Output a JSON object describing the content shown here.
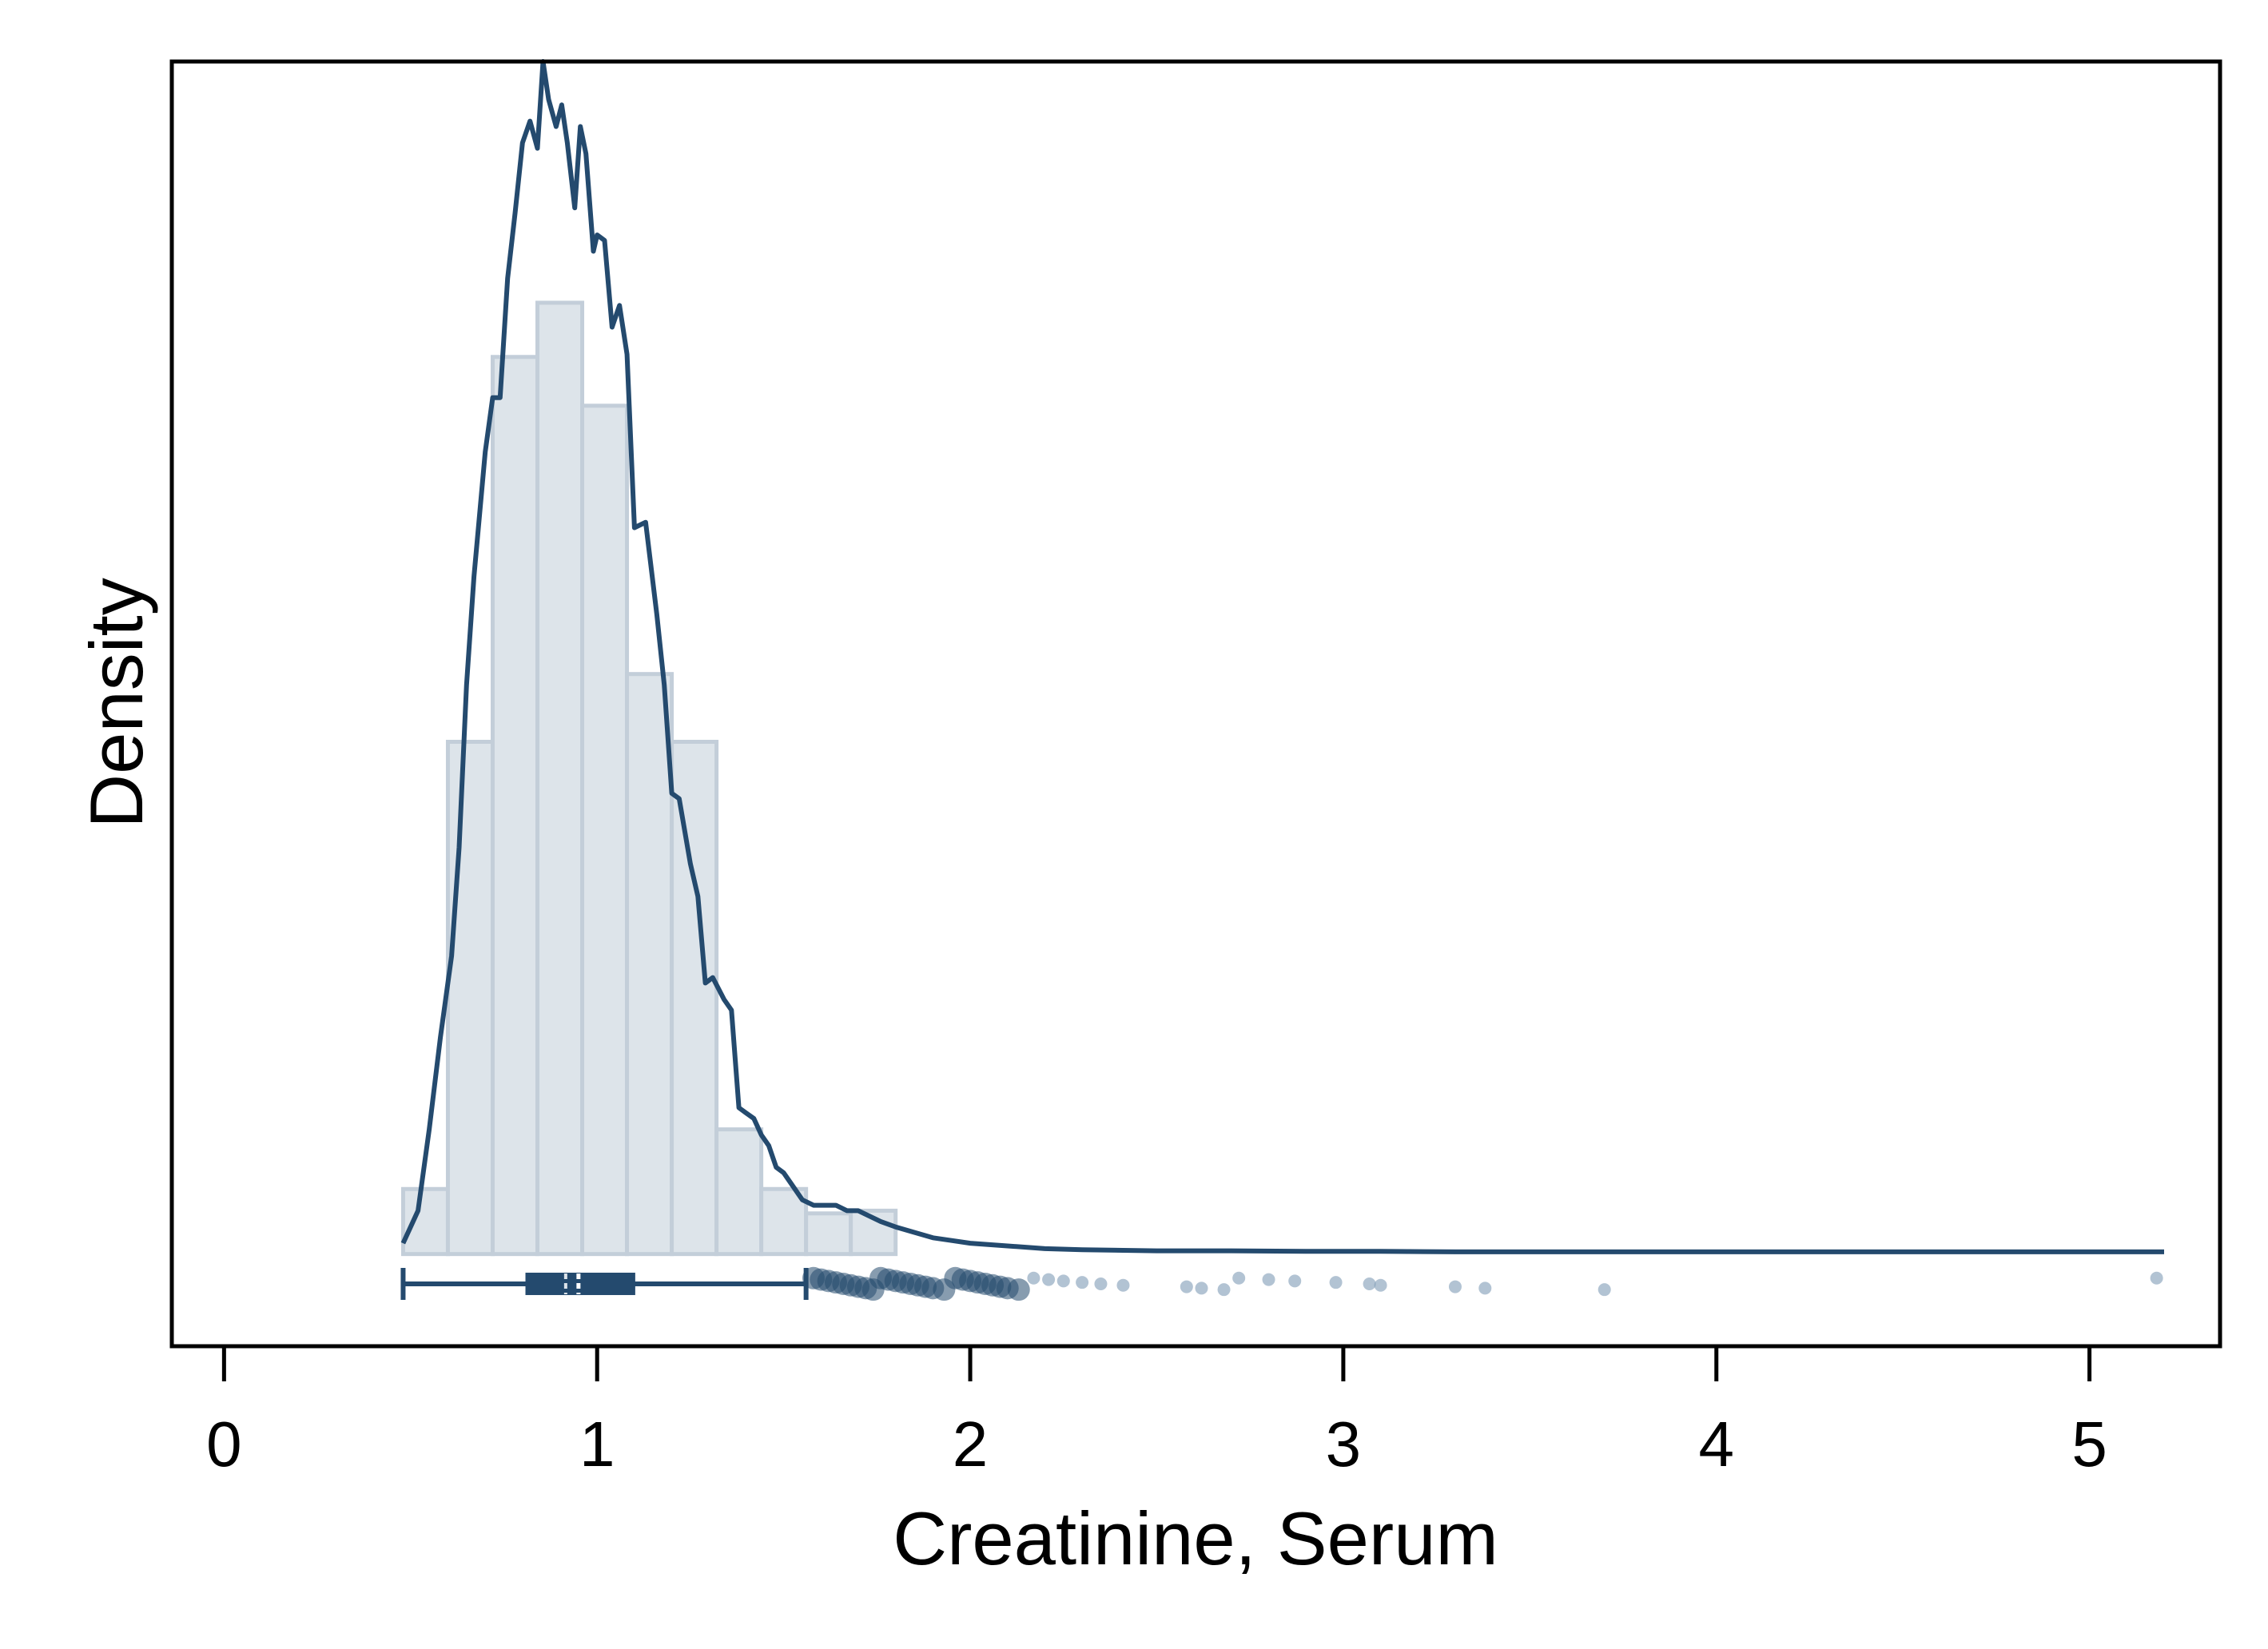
{
  "chart_data": {
    "type": "histogram",
    "xlabel": "Creatinine, Serum",
    "ylabel": "Density",
    "xlim": [
      -0.14,
      5.35
    ],
    "x_ticks": [
      0,
      1,
      2,
      3,
      4,
      5
    ],
    "y_ticks": [],
    "ylim": [
      -0.17,
      2.2
    ],
    "grid": false,
    "legend": "none",
    "colors": {
      "bar_fill": "#dde4ea",
      "bar_stroke": "#c3ced9",
      "line": "#244a6e",
      "outlier": "#7f9bb6"
    },
    "histogram": {
      "bin_width": 0.12,
      "bins": [
        {
          "x0": 0.48,
          "x1": 0.6,
          "density": 0.12
        },
        {
          "x0": 0.6,
          "x1": 0.72,
          "density": 0.945
        },
        {
          "x0": 0.72,
          "x1": 0.84,
          "density": 1.655
        },
        {
          "x0": 0.84,
          "x1": 0.96,
          "density": 1.755
        },
        {
          "x0": 0.96,
          "x1": 1.08,
          "density": 1.565
        },
        {
          "x0": 1.08,
          "x1": 1.2,
          "density": 1.07
        },
        {
          "x0": 1.2,
          "x1": 1.32,
          "density": 0.945
        },
        {
          "x0": 1.32,
          "x1": 1.44,
          "density": 0.23
        },
        {
          "x0": 1.44,
          "x1": 1.56,
          "density": 0.12
        },
        {
          "x0": 1.56,
          "x1": 1.68,
          "density": 0.075
        },
        {
          "x0": 1.68,
          "x1": 1.8,
          "density": 0.08
        }
      ]
    },
    "density_curve": {
      "x": [
        0.48,
        0.52,
        0.55,
        0.58,
        0.61,
        0.63,
        0.65,
        0.67,
        0.7,
        0.72,
        0.74,
        0.76,
        0.78,
        0.8,
        0.82,
        0.84,
        0.855,
        0.87,
        0.89,
        0.905,
        0.92,
        0.94,
        0.955,
        0.97,
        0.99,
        1.0,
        1.02,
        1.04,
        1.06,
        1.08,
        1.1,
        1.13,
        1.16,
        1.18,
        1.2,
        1.22,
        1.25,
        1.27,
        1.29,
        1.31,
        1.34,
        1.36,
        1.38,
        1.4,
        1.42,
        1.44,
        1.46,
        1.48,
        1.5,
        1.52,
        1.55,
        1.58,
        1.61,
        1.64,
        1.67,
        1.7,
        1.73,
        1.76,
        1.8,
        1.85,
        1.9,
        1.95,
        2.0,
        2.1,
        2.2,
        2.3,
        2.5,
        2.7,
        2.9,
        3.1,
        3.3,
        3.7,
        4.0,
        4.5,
        5.0,
        5.2
      ],
      "y": [
        0.02,
        0.08,
        0.23,
        0.4,
        0.55,
        0.75,
        1.05,
        1.25,
        1.48,
        1.58,
        1.58,
        1.8,
        1.92,
        2.05,
        2.09,
        2.04,
        2.2,
        2.13,
        2.08,
        2.12,
        2.05,
        1.93,
        2.08,
        2.03,
        1.85,
        1.88,
        1.87,
        1.71,
        1.75,
        1.66,
        1.34,
        1.35,
        1.18,
        1.05,
        0.85,
        0.84,
        0.72,
        0.66,
        0.5,
        0.51,
        0.47,
        0.45,
        0.27,
        0.26,
        0.25,
        0.22,
        0.2,
        0.16,
        0.15,
        0.13,
        0.1,
        0.09,
        0.09,
        0.09,
        0.08,
        0.08,
        0.07,
        0.06,
        0.05,
        0.04,
        0.03,
        0.025,
        0.02,
        0.015,
        0.01,
        0.008,
        0.006,
        0.006,
        0.005,
        0.005,
        0.004,
        0.004,
        0.004,
        0.004,
        0.004,
        0.004
      ]
    },
    "boxplot": {
      "y": -0.055,
      "whisker_low": 0.48,
      "q1": 0.81,
      "median": 0.95,
      "q3": 1.1,
      "whisker_high": 1.56,
      "outliers": [
        1.58,
        1.6,
        1.62,
        1.64,
        1.66,
        1.68,
        1.7,
        1.72,
        1.74,
        1.76,
        1.78,
        1.8,
        1.82,
        1.84,
        1.86,
        1.88,
        1.9,
        1.93,
        1.96,
        1.98,
        2.0,
        2.02,
        2.04,
        2.06,
        2.08,
        2.1,
        2.13,
        2.17,
        2.21,
        2.25,
        2.3,
        2.35,
        2.41,
        2.58,
        2.62,
        2.68,
        2.72,
        2.8,
        2.87,
        2.98,
        3.07,
        3.1,
        3.3,
        3.38,
        3.7,
        5.18
      ]
    }
  }
}
